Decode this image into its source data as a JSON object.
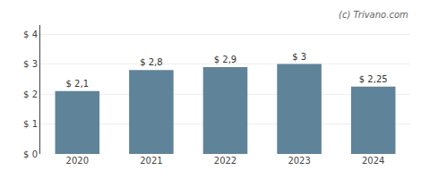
{
  "chart_data": {
    "type": "bar",
    "categories": [
      "2020",
      "2021",
      "2022",
      "2023",
      "2024"
    ],
    "values": [
      2.1,
      2.8,
      2.9,
      3.0,
      2.25
    ],
    "value_labels": [
      "$ 2,1",
      "$ 2,8",
      "$ 2,9",
      "$ 3",
      "$ 2,25"
    ],
    "color": "#5f8399",
    "ylim": [
      0,
      4.3
    ],
    "yticks": [
      {
        "value": 0,
        "label": "$ 0"
      },
      {
        "value": 1,
        "label": "$ 1"
      },
      {
        "value": 2,
        "label": "$ 2"
      },
      {
        "value": 3,
        "label": "$ 3"
      },
      {
        "value": 4,
        "label": "$ 4"
      }
    ],
    "grid": true,
    "data_labels": true,
    "annotations": [
      "(c) Trivano.com"
    ]
  }
}
